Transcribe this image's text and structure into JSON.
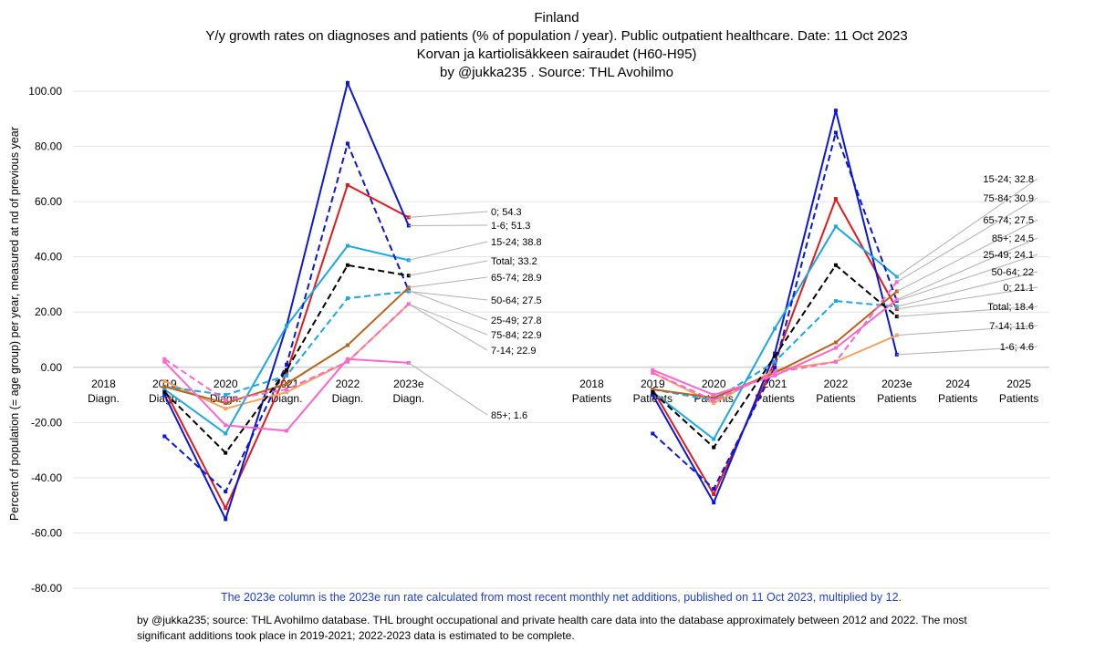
{
  "title": {
    "line1": "Finland",
    "line2": "Y/y growth rates on diagnoses and patients (% of population / year).  Public outpatient healthcare. Date: 11 Oct 2023",
    "line3": "Korvan ja kartiolisäkkeen sairaudet (H60-H95)",
    "line4": "by @jukka235 . Source: THL Avohilmo"
  },
  "ylabel": "Percent of population (= age group) per year, measured at nd of previous year",
  "note_blue": "The 2023e column is the 2023e run rate calculated from most recent monthly net additions, published on 11 Oct 2023, multiplied by 12.",
  "note_black": "by @jukka235; source: THL Avohilmo database. THL brought occupational and private health care data into the database approximately between 2012 and 2022. The most significant additions took place in 2019-2021; 2022-2023 data is estimated to be complete.",
  "chart_data": {
    "type": "line",
    "ylim": [
      -80,
      100
    ],
    "yticks": [
      "100.00",
      "80.00",
      "60.00",
      "40.00",
      "20.00",
      "0.00",
      "-20.00",
      "-40.00",
      "-60.00",
      "-80.00"
    ],
    "ytick_values": [
      100,
      80,
      60,
      40,
      20,
      0,
      -20,
      -40,
      -60,
      -80
    ],
    "categories": [
      [
        "2018",
        "Diagn."
      ],
      [
        "2019",
        "Diagn."
      ],
      [
        "2020",
        "Diagn."
      ],
      [
        "2021",
        "Diagn."
      ],
      [
        "2022",
        "Diagn."
      ],
      [
        "2023e",
        "Diagn."
      ],
      [
        "",
        ""
      ],
      [
        "",
        ""
      ],
      [
        "2018",
        "Patients"
      ],
      [
        "2019",
        "Patients"
      ],
      [
        "2020",
        "Patients"
      ],
      [
        "2021",
        "Patients"
      ],
      [
        "2022",
        "Patients"
      ],
      [
        "2023e",
        "Patients"
      ],
      [
        "2024",
        "Patients"
      ],
      [
        "2025",
        "Patients"
      ]
    ],
    "series": [
      {
        "name": "0",
        "color": "#e31a1c",
        "dash": false,
        "diagn": [
          -8,
          -51,
          -2,
          66,
          54.3
        ],
        "patients": [
          -8,
          -46,
          2,
          61,
          21.1
        ]
      },
      {
        "name": "1-6",
        "color": "#0b16d6",
        "dash": false,
        "diagn": [
          -10,
          -55,
          15,
          103,
          51.3
        ],
        "patients": [
          -10,
          -49,
          5,
          93,
          4.6
        ]
      },
      {
        "name": "7-14",
        "color": "#f4a460",
        "dash": false,
        "diagn": [
          -5,
          -15,
          -9,
          2,
          22.9
        ],
        "patients": [
          -2,
          -13,
          -1,
          2,
          11.6
        ]
      },
      {
        "name": "15-24",
        "color": "#1aa7e6",
        "dash": false,
        "diagn": [
          -8,
          -24,
          15,
          44,
          38.8
        ],
        "patients": [
          -9,
          -26,
          14,
          51,
          32.8
        ]
      },
      {
        "name": "25-49",
        "color": "#0b16d6",
        "dash": true,
        "diagn": [
          -25,
          -45,
          1,
          81,
          27.8
        ],
        "patients": [
          -24,
          -44,
          0,
          85,
          24.1
        ]
      },
      {
        "name": "50-64",
        "color": "#1aa7e6",
        "dash": true,
        "diagn": [
          -7,
          -10,
          -3,
          25,
          27.5
        ],
        "patients": [
          -8,
          -12,
          2,
          24,
          22
        ]
      },
      {
        "name": "65-74",
        "color": "#b8641e",
        "dash": false,
        "diagn": [
          -7,
          -13,
          -6,
          8,
          28.9
        ],
        "patients": [
          -8,
          -11,
          -2,
          9,
          27.5
        ]
      },
      {
        "name": "75-84",
        "color": "#ff66cc",
        "dash": true,
        "diagn": [
          3,
          -12,
          -8,
          2,
          22.9
        ],
        "patients": [
          -2,
          -12,
          -2,
          2,
          30.9
        ]
      },
      {
        "name": "85+",
        "color": "#ff66cc",
        "dash": false,
        "diagn": [
          2,
          -21,
          -23,
          3,
          1.6
        ],
        "patients": [
          -1,
          -10,
          -3,
          7,
          24.5
        ]
      },
      {
        "name": "Total",
        "color": "#000000",
        "dash": true,
        "diagn": [
          -9,
          -31,
          -1,
          37,
          33.2
        ],
        "patients": [
          -9,
          -29,
          4,
          37,
          18.4
        ]
      }
    ],
    "labels_diagn": [
      "0; 54.3",
      "1-6; 51.3",
      "15-24; 38.8",
      "Total; 33.2",
      "65-74; 28.9",
      "50-64; 27.5",
      "25-49; 27.8",
      "75-84; 22.9",
      "7-14; 22.9",
      "85+; 1.6"
    ],
    "labels_patients": [
      "15-24; 32.8",
      "75-84; 30.9",
      "65-74; 27.5",
      "85+; 24.5",
      "25-49; 24.1",
      "50-64; 22",
      "0; 21.1",
      "Total; 18.4",
      "7-14; 11.6",
      "1-6; 4.6"
    ]
  }
}
